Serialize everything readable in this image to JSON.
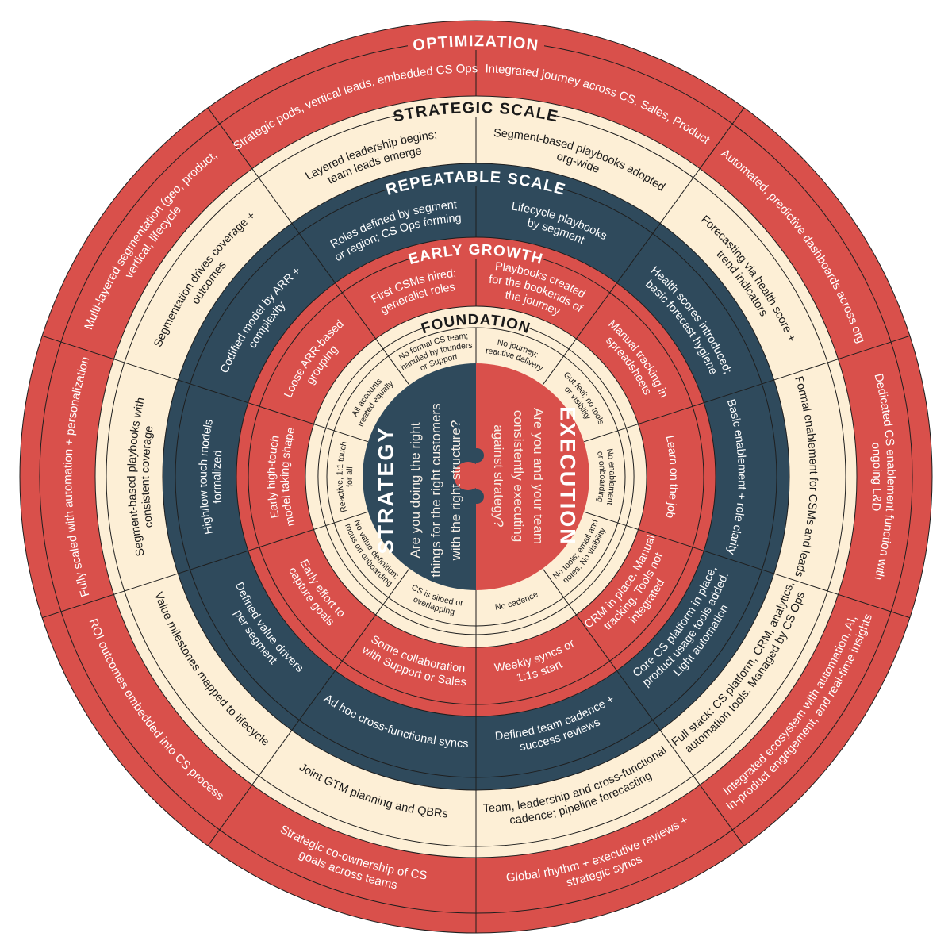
{
  "colors": {
    "red": "#d9504b",
    "cream": "#fdefd6",
    "navy": "#2f4a5c",
    "line": "#1e1e1e",
    "light_text": "#ffffff",
    "dark_text": "#1a1a1a"
  },
  "center": {
    "strategy": {
      "title": "STRATEGY",
      "lines": [
        "Are you doing the right",
        "things for the right customers",
        "with the right structure?"
      ]
    },
    "execution": {
      "title": "EXECUTION",
      "lines": [
        "Are you and your team",
        "consistently executing",
        "against strategy?"
      ]
    }
  },
  "rings": [
    {
      "label": "OPTIMIZATION",
      "fill": "red",
      "text": "light",
      "segments": [
        [
          "Integrated journey across CS, Sales, Product"
        ],
        [
          "Automated, predictive dashboards across org"
        ],
        [
          "Dedicated CS enablement function with",
          "ongoing L&D"
        ],
        [
          "Integrated ecosystem with automation, AI,",
          "in-product engagement, and real-time insights"
        ],
        [
          "Global rhythm + executive reviews +",
          "strategic syncs"
        ],
        [
          "Strategic co-ownership of CS",
          "goals across teams"
        ],
        [
          "ROI outcomes embedded into CS process"
        ],
        [
          "Fully scaled with automation + personalization"
        ],
        [
          "Multi-layered segmentation (geo, product,",
          "vertical, lifecycle"
        ],
        [
          "Strategic pods, vertical leads, embedded CS Ops"
        ]
      ]
    },
    {
      "label": "STRATEGIC SCALE",
      "fill": "cream",
      "text": "dark",
      "segments": [
        [
          "Segment-based playbooks adopted",
          "org-wide"
        ],
        [
          "Forecasting via health score +",
          "trend indicators"
        ],
        [
          "Formal enablement for CSMs and leads"
        ],
        [
          "Full stack: CS platform, CRM, analytics,",
          "automation tools. Managed by CS Ops"
        ],
        [
          "Team, leadership and cross-functional",
          "cadence; pipeline forecasting"
        ],
        [
          "Joint GTM planning and QBRs"
        ],
        [
          "Value milestones mapped to lifecycle"
        ],
        [
          "Segment-based playbooks with",
          "consistent coverage"
        ],
        [
          "Segmentation drives coverage +",
          "outcomes"
        ],
        [
          "Layered leadership begins;",
          "team leads emerge"
        ]
      ]
    },
    {
      "label": "REPEATABLE SCALE",
      "fill": "navy",
      "text": "light",
      "segments": [
        [
          "Lifecycle playbooks",
          "by segment"
        ],
        [
          "Health scores introduced;",
          "basic forecast hygiene"
        ],
        [
          "Basic enablement + role clarity"
        ],
        [
          "Core CS platform in place,",
          "product usage tools added.",
          "Light automation"
        ],
        [
          "Defined team cadence +",
          "success  reviews"
        ],
        [
          "Ad hoc cross-functional syncs"
        ],
        [
          "Defined value drivers",
          "per segment"
        ],
        [
          "High/low touch models",
          "formalized"
        ],
        [
          "Codified model by ARR +",
          "complexity"
        ],
        [
          "Roles defined by segment",
          "or region; CS Ops forming"
        ]
      ]
    },
    {
      "label": "EARLY GROWTH",
      "fill": "red",
      "text": "light",
      "segments": [
        [
          "Playbooks created",
          "for the bookends of",
          "the journey"
        ],
        [
          "Manual tracking in",
          "spreadsheets"
        ],
        [
          "Learn on the job"
        ],
        [
          "CRM in place. Manual",
          "tracking. Tools not",
          "integrated"
        ],
        [
          "Weekly syncs or",
          "1:1s start"
        ],
        [
          "Some collaboration",
          "with Support or Sales"
        ],
        [
          "Early effort to",
          "capture goals"
        ],
        [
          "Early high-touch",
          "model taking shape"
        ],
        [
          "Loose ARR-based",
          "grouping"
        ],
        [
          "First CSMs hired;",
          "generalist roles"
        ]
      ]
    },
    {
      "label": "FOUNDATION",
      "fill": "cream",
      "text": "dark",
      "segments": [
        [
          "No journey;",
          "reactive delivery"
        ],
        [
          "Gut feel; no tools",
          "or visibility"
        ],
        [
          "No enablement",
          "or onboarding"
        ],
        [
          "No tools; email and",
          "notes. No visibility"
        ],
        [
          "No cadence"
        ],
        [
          "CS is siloed or",
          "overlapping"
        ],
        [
          "No value definition;",
          "focus on onboarding"
        ],
        [
          "Reactive, 1:1 touch",
          "for all"
        ],
        [
          "All accounts",
          "treated equally"
        ],
        [
          "No formal CS team;",
          "handled by founders",
          "or Support"
        ]
      ]
    }
  ]
}
